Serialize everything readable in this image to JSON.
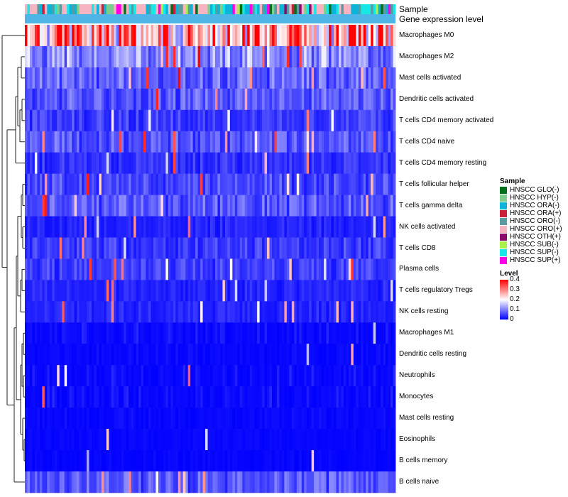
{
  "chart_data": {
    "type": "heatmap",
    "title": "",
    "annotation_tracks": [
      "Sample",
      "Gene expression level"
    ],
    "n_samples": 150,
    "rows": [
      {
        "label": "Macrophages M0",
        "mean": 0.29
      },
      {
        "label": "Macrophages M2",
        "mean": 0.12
      },
      {
        "label": "Mast cells activated",
        "mean": 0.08
      },
      {
        "label": "Dendritic cells activated",
        "mean": 0.07
      },
      {
        "label": "T cells CD4 memory activated",
        "mean": 0.05
      },
      {
        "label": "T cells CD4 naive",
        "mean": 0.07
      },
      {
        "label": "T cells CD4 memory resting",
        "mean": 0.04
      },
      {
        "label": "T cells follicular helper",
        "mean": 0.06
      },
      {
        "label": "T cells gamma delta",
        "mean": 0.07
      },
      {
        "label": "NK cells activated",
        "mean": 0.03
      },
      {
        "label": "T cells CD8",
        "mean": 0.05
      },
      {
        "label": "Plasma cells",
        "mean": 0.05
      },
      {
        "label": "T cells regulatory  Tregs",
        "mean": 0.03
      },
      {
        "label": "NK cells resting",
        "mean": 0.03
      },
      {
        "label": "Macrophages M1",
        "mean": 0.02
      },
      {
        "label": "Dendritic cells resting",
        "mean": 0.01
      },
      {
        "label": "Neutrophils",
        "mean": 0.02
      },
      {
        "label": "Monocytes",
        "mean": 0.02
      },
      {
        "label": "Mast cells resting",
        "mean": 0.01
      },
      {
        "label": "Eosinophils",
        "mean": 0.005
      },
      {
        "label": "B cells memory",
        "mean": 0.002
      },
      {
        "label": "B cells naive",
        "mean": 0.07
      }
    ],
    "sample_legend": {
      "title": "Sample",
      "categories": [
        {
          "label": "HNSCC GLO(-)",
          "color": "#00701a"
        },
        {
          "label": "HNSCC HYP(-)",
          "color": "#7ccd8e"
        },
        {
          "label": "HNSCC ORA(-)",
          "color": "#0ab4d8"
        },
        {
          "label": "HNSCC ORA(+)",
          "color": "#cc1f3a"
        },
        {
          "label": "HNSCC ORO(-)",
          "color": "#5a9aa0"
        },
        {
          "label": "HNSCC ORO(+)",
          "color": "#f6b3c0"
        },
        {
          "label": "HNSCC OTH(+)",
          "color": "#8b0a6e"
        },
        {
          "label": "HNSCC SUB(-)",
          "color": "#a8f04a"
        },
        {
          "label": "HNSCC SUP(-)",
          "color": "#17e7e7"
        },
        {
          "label": "HNSCC SUP(+)",
          "color": "#ff00e6"
        }
      ]
    },
    "level_legend": {
      "title": "Level",
      "range": [
        0,
        0.4
      ],
      "ticks": [
        "0.4",
        "0.3",
        "0.2",
        "0.1",
        "0"
      ],
      "tick_values": [
        0.4,
        0.3,
        0.2,
        0.1,
        0
      ],
      "colors": {
        "low": "#0000ff",
        "mid": "#ffffff",
        "high": "#ff0000"
      }
    },
    "expression_track_color": "#4fb4e6",
    "dendrogram": "left"
  }
}
